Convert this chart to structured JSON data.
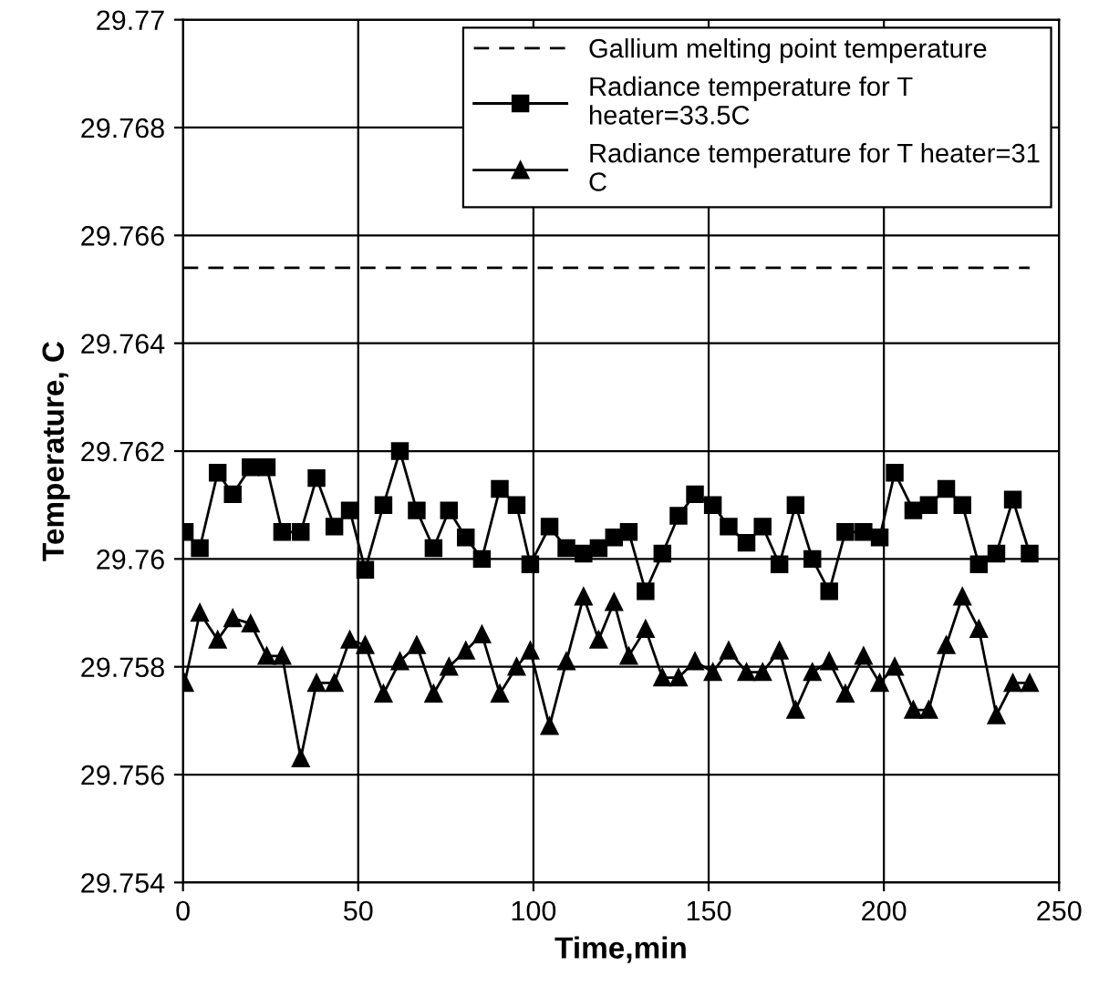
{
  "chart_data": {
    "type": "line",
    "xlabel": "Time,min",
    "ylabel": "Temperature, C",
    "xlim": [
      0,
      250
    ],
    "xticks": [
      0,
      50,
      100,
      150,
      200,
      250
    ],
    "ylim": [
      29.754,
      29.77
    ],
    "yticks": [
      29.754,
      29.756,
      29.758,
      29.76,
      29.762,
      29.764,
      29.766,
      29.768,
      29.77
    ],
    "grid": true,
    "legend": "top right",
    "line_style": "solid",
    "x": [
      0.5,
      4.8,
      9.9,
      14.2,
      19.3,
      23.9,
      28.3,
      33.6,
      38.1,
      43.2,
      47.6,
      52.0,
      57.2,
      61.9,
      66.7,
      71.5,
      75.9,
      80.7,
      85.3,
      90.4,
      95.2,
      99.1,
      104.6,
      109.4,
      114.3,
      118.6,
      123.0,
      127.2,
      132.0,
      136.8,
      141.4,
      146.1,
      151.2,
      155.7,
      160.8,
      165.4,
      170.2,
      174.8,
      179.6,
      184.4,
      189.0,
      194.2,
      198.8,
      203.1,
      208.4,
      212.8,
      217.8,
      222.4,
      227.1,
      232.1,
      236.8,
      241.6
    ],
    "series": [
      {
        "name": "Gallium melting point temperature",
        "color": "#000000",
        "line_style": "dashed",
        "marker": "none",
        "x": [
          0,
          241.6
        ],
        "values": [
          29.7654,
          29.7654
        ]
      },
      {
        "name": "Radiance temperature for T heater=33.5C",
        "color": "#000000",
        "marker": "square",
        "values": [
          29.7605,
          29.7602,
          29.7616,
          29.7612,
          29.7617,
          29.7617,
          29.7605,
          29.7605,
          29.7615,
          29.7606,
          29.7609,
          29.7598,
          29.761,
          29.762,
          29.7609,
          29.7602,
          29.7609,
          29.7604,
          29.76,
          29.7613,
          29.761,
          29.7599,
          29.7606,
          29.7602,
          29.7601,
          29.7602,
          29.7604,
          29.7605,
          29.7594,
          29.7601,
          29.7608,
          29.7612,
          29.761,
          29.7606,
          29.7603,
          29.7606,
          29.7599,
          29.761,
          29.76,
          29.7594,
          29.7605,
          29.7605,
          29.7604,
          29.7616,
          29.7609,
          29.761,
          29.7613,
          29.761,
          29.7599,
          29.7601,
          29.7611,
          29.7601
        ]
      },
      {
        "name": "Radiance temperature for T heater=31 C",
        "color": "#000000",
        "marker": "triangle",
        "values": [
          29.7577,
          29.759,
          29.7585,
          29.7589,
          29.7588,
          29.7582,
          29.7582,
          29.7563,
          29.7577,
          29.7577,
          29.7585,
          29.7584,
          29.7575,
          29.7581,
          29.7584,
          29.7575,
          29.758,
          29.7583,
          29.7586,
          29.7575,
          29.758,
          29.7583,
          29.7569,
          29.7581,
          29.7593,
          29.7585,
          29.7592,
          29.7582,
          29.7587,
          29.7578,
          29.7578,
          29.7581,
          29.7579,
          29.7583,
          29.7579,
          29.7579,
          29.7583,
          29.7572,
          29.7579,
          29.7581,
          29.7575,
          29.7582,
          29.7577,
          29.758,
          29.7572,
          29.7572,
          29.7584,
          29.7593,
          29.7587,
          29.7571,
          29.7577,
          29.7577
        ]
      }
    ]
  }
}
